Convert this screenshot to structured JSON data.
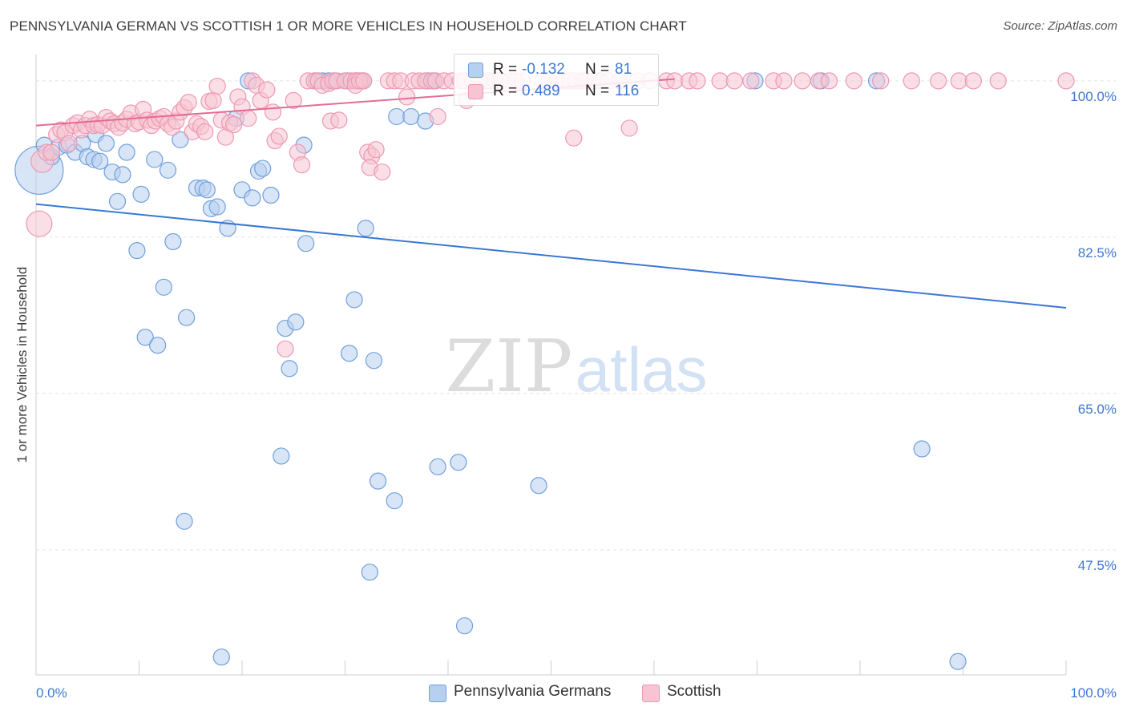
{
  "title": "PENNSYLVANIA GERMAN VS SCOTTISH 1 OR MORE VEHICLES IN HOUSEHOLD CORRELATION CHART",
  "source": "Source: ZipAtlas.com",
  "watermark": {
    "zip": "ZIP",
    "atlas": "atlas"
  },
  "colors": {
    "blue_fill": "#b8d0f0",
    "blue_stroke": "#6f9fdc",
    "blue_line": "#3a78d4",
    "pink_fill": "#f6c4d2",
    "pink_stroke": "#ee98b2",
    "pink_line": "#e66a96",
    "value_text": "#3e78d0",
    "grid": "#e3e3e3"
  },
  "legend_top": [
    {
      "r_label": "R =",
      "r_value": "-0.132",
      "n_label": "N =",
      "n_value": "81"
    },
    {
      "r_label": "R =",
      "r_value": "0.489",
      "n_label": "N =",
      "n_value": "116"
    }
  ],
  "chart_data": {
    "type": "scatter",
    "title": "PENNSYLVANIA GERMAN VS SCOTTISH 1 OR MORE VEHICLES IN HOUSEHOLD CORRELATION CHART",
    "xlabel": "",
    "ylabel": "1 or more Vehicles in Household",
    "xlim": [
      0,
      100
    ],
    "ylim": [
      33.5,
      102.5
    ],
    "x_tick_labels": [
      "0.0%",
      "100.0%"
    ],
    "y_ticks": [
      100.0,
      82.5,
      65.0,
      47.5
    ],
    "y_tick_labels": [
      "100.0%",
      "82.5%",
      "65.0%",
      "47.5%"
    ],
    "grid": true,
    "legend_position": "bottom",
    "series": [
      {
        "name": "Pennsylvania Germans",
        "trend": {
          "x": [
            0,
            100
          ],
          "y": [
            86.2,
            74.6
          ]
        },
        "points": [
          [
            0.3,
            90.0,
            30
          ],
          [
            0.8,
            92.8,
            10
          ],
          [
            1.5,
            91.5,
            10
          ],
          [
            2.2,
            92.6,
            10
          ],
          [
            3.0,
            92.8,
            10
          ],
          [
            3.8,
            92.0,
            10
          ],
          [
            4.5,
            93.0,
            10
          ],
          [
            5.0,
            91.5,
            10
          ],
          [
            5.6,
            91.2,
            10
          ],
          [
            5.8,
            94.0,
            10
          ],
          [
            6.2,
            91.0,
            10
          ],
          [
            6.8,
            93.0,
            10
          ],
          [
            7.4,
            89.8,
            10
          ],
          [
            7.9,
            86.5,
            10
          ],
          [
            8.4,
            89.5,
            10
          ],
          [
            8.8,
            92.0,
            10
          ],
          [
            9.8,
            81.0,
            10
          ],
          [
            10.2,
            87.3,
            10
          ],
          [
            10.6,
            71.3,
            10
          ],
          [
            11.5,
            91.2,
            10
          ],
          [
            11.8,
            70.4,
            10
          ],
          [
            12.4,
            76.9,
            10
          ],
          [
            12.8,
            90.0,
            10
          ],
          [
            13.3,
            82.0,
            10
          ],
          [
            14.0,
            93.4,
            10
          ],
          [
            14.4,
            50.7,
            10
          ],
          [
            14.6,
            73.5,
            10
          ],
          [
            15.6,
            88.0,
            10
          ],
          [
            16.2,
            88.0,
            10
          ],
          [
            16.6,
            87.8,
            10
          ],
          [
            17.0,
            85.7,
            10
          ],
          [
            17.6,
            85.9,
            10
          ],
          [
            18.0,
            35.5,
            10
          ],
          [
            18.6,
            83.5,
            10
          ],
          [
            19.4,
            95.8,
            10
          ],
          [
            20.0,
            87.8,
            10
          ],
          [
            20.6,
            100.0,
            10
          ],
          [
            21.0,
            86.9,
            10
          ],
          [
            21.6,
            89.9,
            10
          ],
          [
            22.0,
            90.2,
            10
          ],
          [
            22.8,
            87.2,
            10
          ],
          [
            23.8,
            58.0,
            10
          ],
          [
            24.2,
            72.3,
            10
          ],
          [
            24.6,
            67.8,
            10
          ],
          [
            25.2,
            73.0,
            10
          ],
          [
            26.0,
            92.8,
            10
          ],
          [
            26.2,
            81.8,
            10
          ],
          [
            27.2,
            100.0,
            10
          ],
          [
            27.8,
            100.0,
            10
          ],
          [
            28.4,
            100.0,
            10
          ],
          [
            29.0,
            100.0,
            10
          ],
          [
            30.2,
            100.0,
            10
          ],
          [
            31.0,
            100.0,
            10
          ],
          [
            30.4,
            69.5,
            10
          ],
          [
            30.9,
            75.5,
            10
          ],
          [
            31.2,
            100.0,
            10
          ],
          [
            31.8,
            100.0,
            10
          ],
          [
            32.0,
            83.5,
            10
          ],
          [
            32.4,
            45.0,
            10
          ],
          [
            32.8,
            68.7,
            10
          ],
          [
            33.2,
            55.2,
            10
          ],
          [
            35.0,
            96.0,
            10
          ],
          [
            34.8,
            53.0,
            10
          ],
          [
            36.4,
            96.0,
            10
          ],
          [
            38.0,
            100.0,
            10
          ],
          [
            38.6,
            100.0,
            10
          ],
          [
            37.8,
            95.5,
            10
          ],
          [
            39.0,
            56.8,
            10
          ],
          [
            41.0,
            57.3,
            10
          ],
          [
            41.6,
            39.0,
            10
          ],
          [
            43.2,
            100.0,
            10
          ],
          [
            44.0,
            100.0,
            10
          ],
          [
            44.6,
            100.0,
            10
          ],
          [
            45.0,
            100.0,
            10
          ],
          [
            46.0,
            100.0,
            10
          ],
          [
            48.8,
            54.7,
            10
          ],
          [
            54.8,
            100.0,
            10
          ],
          [
            69.8,
            100.0,
            10
          ],
          [
            76.2,
            100.0,
            10
          ],
          [
            81.6,
            100.0,
            10
          ],
          [
            86.0,
            58.8,
            10
          ],
          [
            89.5,
            35.0,
            10
          ]
        ]
      },
      {
        "name": "Scottish",
        "trend": {
          "x": [
            0,
            62
          ],
          "y": [
            95.0,
            100.2
          ]
        },
        "points": [
          [
            0.3,
            84.0,
            16
          ],
          [
            0.6,
            91.0,
            14
          ],
          [
            1.0,
            92.0,
            10
          ],
          [
            1.5,
            92.0,
            10
          ],
          [
            2.0,
            94.0,
            10
          ],
          [
            2.4,
            94.5,
            10
          ],
          [
            2.8,
            94.2,
            10
          ],
          [
            3.2,
            93.0,
            10
          ],
          [
            3.6,
            95.0,
            10
          ],
          [
            4.0,
            95.3,
            10
          ],
          [
            4.4,
            94.5,
            10
          ],
          [
            4.8,
            95.0,
            10
          ],
          [
            5.2,
            95.7,
            10
          ],
          [
            5.6,
            95.0,
            10
          ],
          [
            6.0,
            95.1,
            10
          ],
          [
            6.4,
            95.0,
            10
          ],
          [
            6.8,
            95.9,
            10
          ],
          [
            7.2,
            95.5,
            10
          ],
          [
            7.6,
            95.2,
            10
          ],
          [
            8.0,
            94.8,
            10
          ],
          [
            8.4,
            95.3,
            10
          ],
          [
            8.8,
            95.7,
            10
          ],
          [
            9.2,
            96.4,
            10
          ],
          [
            9.6,
            95.2,
            10
          ],
          [
            10.0,
            95.4,
            10
          ],
          [
            10.4,
            96.8,
            10
          ],
          [
            10.8,
            95.6,
            10
          ],
          [
            11.2,
            95.0,
            10
          ],
          [
            11.6,
            95.5,
            10
          ],
          [
            12.0,
            95.8,
            10
          ],
          [
            12.4,
            96.0,
            10
          ],
          [
            12.8,
            95.2,
            10
          ],
          [
            13.2,
            94.8,
            10
          ],
          [
            13.6,
            95.5,
            10
          ],
          [
            14.0,
            96.5,
            10
          ],
          [
            14.4,
            97.0,
            10
          ],
          [
            14.8,
            97.6,
            10
          ],
          [
            15.2,
            94.3,
            10
          ],
          [
            15.6,
            95.2,
            10
          ],
          [
            16.0,
            94.9,
            10
          ],
          [
            16.4,
            94.3,
            10
          ],
          [
            16.8,
            97.7,
            10
          ],
          [
            17.2,
            97.8,
            10
          ],
          [
            17.6,
            99.4,
            10
          ],
          [
            18.0,
            95.6,
            10
          ],
          [
            18.4,
            93.7,
            10
          ],
          [
            18.8,
            95.3,
            10
          ],
          [
            19.2,
            95.1,
            10
          ],
          [
            19.6,
            98.2,
            10
          ],
          [
            20.0,
            97.1,
            10
          ],
          [
            20.6,
            95.8,
            10
          ],
          [
            21.0,
            100.0,
            10
          ],
          [
            21.4,
            99.5,
            10
          ],
          [
            21.8,
            97.8,
            10
          ],
          [
            22.4,
            99.0,
            10
          ],
          [
            23.0,
            96.5,
            10
          ],
          [
            23.2,
            93.3,
            10
          ],
          [
            23.6,
            93.8,
            10
          ],
          [
            24.2,
            70.0,
            10
          ],
          [
            25.0,
            97.8,
            10
          ],
          [
            25.4,
            92.0,
            10
          ],
          [
            25.8,
            90.6,
            10
          ],
          [
            26.4,
            100.0,
            10
          ],
          [
            27.0,
            100.0,
            10
          ],
          [
            27.4,
            100.0,
            10
          ],
          [
            27.8,
            99.5,
            10
          ],
          [
            28.4,
            99.7,
            10
          ],
          [
            28.8,
            100.0,
            10
          ],
          [
            29.2,
            100.0,
            10
          ],
          [
            28.6,
            95.5,
            10
          ],
          [
            29.4,
            95.6,
            10
          ],
          [
            30.0,
            100.0,
            10
          ],
          [
            30.6,
            100.0,
            10
          ],
          [
            31.2,
            100.0,
            10
          ],
          [
            31.6,
            100.0,
            10
          ],
          [
            31.0,
            100.0,
            10
          ],
          [
            31.0,
            99.5,
            10
          ],
          [
            31.4,
            100.0,
            10
          ],
          [
            31.8,
            100.0,
            10
          ],
          [
            32.2,
            92.0,
            10
          ],
          [
            32.6,
            91.6,
            10
          ],
          [
            32.4,
            90.3,
            10
          ],
          [
            33.0,
            92.3,
            10
          ],
          [
            33.6,
            89.8,
            10
          ],
          [
            34.2,
            100.0,
            10
          ],
          [
            34.8,
            100.0,
            10
          ],
          [
            35.4,
            100.0,
            10
          ],
          [
            36.0,
            98.2,
            10
          ],
          [
            36.6,
            100.0,
            10
          ],
          [
            37.2,
            100.0,
            10
          ],
          [
            37.8,
            100.0,
            10
          ],
          [
            38.4,
            100.0,
            10
          ],
          [
            38.8,
            100.0,
            10
          ],
          [
            39.0,
            96.0,
            10
          ],
          [
            39.6,
            100.0,
            10
          ],
          [
            40.4,
            100.0,
            10
          ],
          [
            41.2,
            100.0,
            10
          ],
          [
            41.6,
            100.0,
            10
          ],
          [
            41.8,
            97.8,
            10
          ],
          [
            42.4,
            100.0,
            10
          ],
          [
            43.0,
            100.0,
            10
          ],
          [
            43.8,
            100.0,
            10
          ],
          [
            44.6,
            100.0,
            10
          ],
          [
            45.2,
            100.0,
            10
          ],
          [
            46.0,
            100.0,
            10
          ],
          [
            46.6,
            100.0,
            10
          ],
          [
            47.2,
            100.0,
            10
          ],
          [
            49.2,
            100.0,
            10
          ],
          [
            49.8,
            100.0,
            10
          ],
          [
            50.6,
            100.0,
            10
          ],
          [
            51.2,
            100.0,
            10
          ],
          [
            51.8,
            100.0,
            10
          ],
          [
            52.4,
            100.0,
            10
          ],
          [
            52.2,
            93.6,
            10
          ],
          [
            53.0,
            100.0,
            10
          ],
          [
            53.4,
            100.0,
            10
          ],
          [
            54.2,
            100.0,
            10
          ],
          [
            54.8,
            100.0,
            10
          ],
          [
            55.6,
            100.0,
            10
          ],
          [
            56.6,
            100.0,
            10
          ],
          [
            57.6,
            94.7,
            10
          ],
          [
            58.4,
            100.0,
            10
          ],
          [
            59.6,
            100.0,
            10
          ],
          [
            61.2,
            100.0,
            10
          ],
          [
            62.0,
            100.0,
            10
          ],
          [
            63.4,
            100.0,
            10
          ],
          [
            64.2,
            100.0,
            10
          ],
          [
            66.4,
            100.0,
            10
          ],
          [
            67.8,
            100.0,
            10
          ],
          [
            69.4,
            100.0,
            10
          ],
          [
            71.6,
            100.0,
            10
          ],
          [
            72.6,
            100.0,
            10
          ],
          [
            74.4,
            100.0,
            10
          ],
          [
            76.0,
            100.0,
            10
          ],
          [
            77.0,
            100.0,
            10
          ],
          [
            79.4,
            100.0,
            10
          ],
          [
            82.0,
            100.0,
            10
          ],
          [
            85.0,
            100.0,
            10
          ],
          [
            87.6,
            100.0,
            10
          ],
          [
            89.6,
            100.0,
            10
          ],
          [
            91.0,
            100.0,
            10
          ],
          [
            93.4,
            100.0,
            10
          ],
          [
            100.0,
            100.0,
            10
          ]
        ]
      }
    ]
  }
}
